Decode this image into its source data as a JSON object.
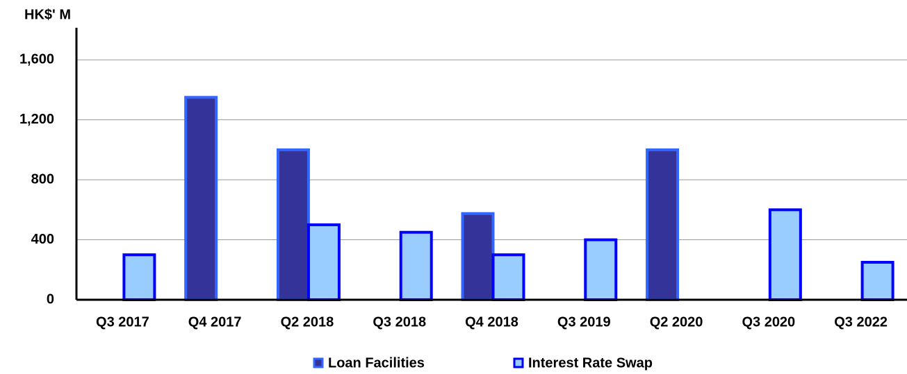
{
  "chart_data": {
    "type": "bar",
    "y_label": "HK$' M",
    "categories": [
      "Q3 2017",
      "Q4 2017",
      "Q2 2018",
      "Q3 2018",
      "Q4 2018",
      "Q3 2019",
      "Q2 2020",
      "Q3 2020",
      "Q3 2022"
    ],
    "series": [
      {
        "name": "Loan Facilities",
        "color": "#333399",
        "edge_color": "#3366ff",
        "values": [
          null,
          1350,
          1000,
          null,
          575,
          null,
          1000,
          null,
          null
        ]
      },
      {
        "name": "Interest Rate Swap",
        "color": "#99ccff",
        "edge_color": "#0000ff",
        "values": [
          300,
          null,
          500,
          450,
          300,
          400,
          null,
          600,
          250
        ]
      }
    ],
    "ylim": [
      0,
      1800
    ],
    "yticks": [
      0,
      {
        "value": 400,
        "label": "400"
      },
      {
        "value": 800,
        "label": "800"
      },
      {
        "value": 1200,
        "label": "1,200"
      },
      {
        "value": 1600,
        "label": "1,600"
      }
    ],
    "grid": true
  }
}
